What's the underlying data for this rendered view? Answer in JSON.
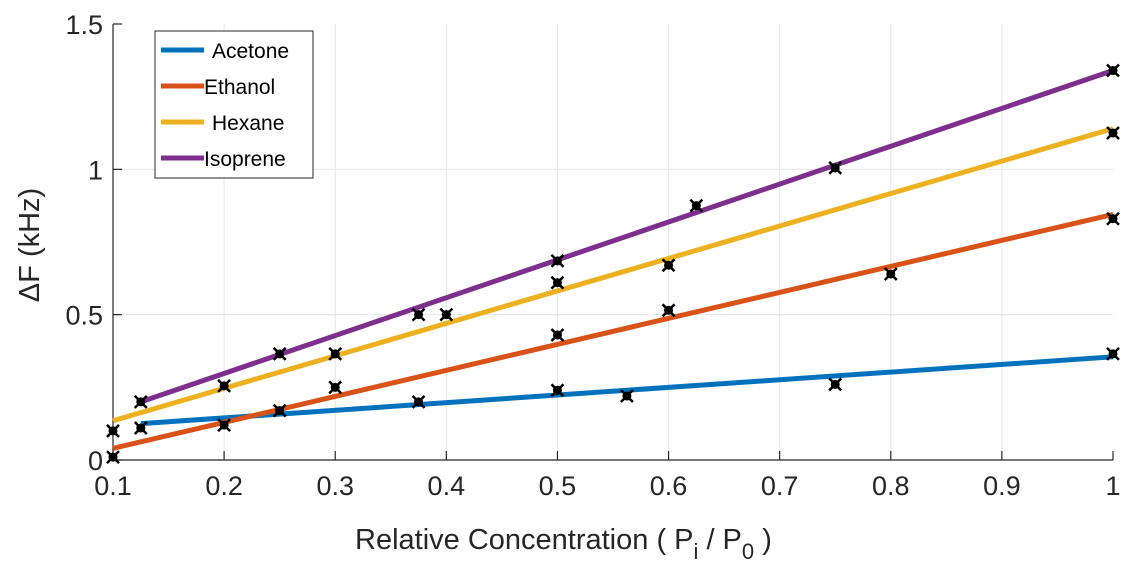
{
  "chart_data": {
    "type": "line",
    "xlabel": {
      "main": "Relative Concentration ( P",
      "sub_i": "i",
      "mid": " / P",
      "sub_0": "0",
      "end": " )"
    },
    "ylabel": {
      "delta": "Δ",
      "main": "F  (kHz)"
    },
    "xlim": [
      0.1,
      1
    ],
    "ylim": [
      0,
      1.5
    ],
    "xticks": [
      0.1,
      0.2,
      0.3,
      0.4,
      0.5,
      0.6,
      0.7,
      0.8,
      0.9,
      1
    ],
    "xtick_labels": [
      "0.1",
      "0.2",
      "0.3",
      "0.4",
      "0.5",
      "0.6",
      "0.7",
      "0.8",
      "0.9",
      "1"
    ],
    "yticks": [
      0,
      0.5,
      1,
      1.5
    ],
    "ytick_labels": [
      "0",
      "0.5",
      "1",
      "1.5"
    ],
    "grid": true,
    "legend_position": "top-left",
    "series": [
      {
        "name": "Acetone",
        "color": "#0072BD",
        "fit": [
          [
            0.125,
            0.125
          ],
          [
            1,
            0.355
          ]
        ]
      },
      {
        "name": "Ethanol",
        "color": "#D95319",
        "fit": [
          [
            0.1,
            0.04
          ],
          [
            1,
            0.845
          ]
        ]
      },
      {
        "name": "Hexane",
        "color": "#EDB120",
        "fit": [
          [
            0.1,
            0.135
          ],
          [
            1,
            1.14
          ]
        ]
      },
      {
        "name": "Isoprene",
        "color": "#7E2F8E",
        "fit": [
          [
            0.125,
            0.2
          ],
          [
            1,
            1.34
          ]
        ]
      }
    ],
    "points": [
      [
        0.1,
        0.1
      ],
      [
        0.1,
        0.01
      ],
      [
        0.125,
        0.11
      ],
      [
        0.125,
        0.2
      ],
      [
        0.2,
        0.12
      ],
      [
        0.2,
        0.255
      ],
      [
        0.25,
        0.17
      ],
      [
        0.25,
        0.365
      ],
      [
        0.3,
        0.25
      ],
      [
        0.3,
        0.365
      ],
      [
        0.375,
        0.2
      ],
      [
        0.375,
        0.5
      ],
      [
        0.4,
        0.5
      ],
      [
        0.5,
        0.24
      ],
      [
        0.5,
        0.43
      ],
      [
        0.5,
        0.61
      ],
      [
        0.5,
        0.685
      ],
      [
        0.5625,
        0.22
      ],
      [
        0.6,
        0.515
      ],
      [
        0.6,
        0.67
      ],
      [
        0.625,
        0.875
      ],
      [
        0.75,
        0.26
      ],
      [
        0.75,
        1.005
      ],
      [
        0.8,
        0.64
      ],
      [
        1,
        0.365
      ],
      [
        1,
        0.83
      ],
      [
        1,
        1.125
      ],
      [
        1,
        1.34
      ]
    ]
  }
}
